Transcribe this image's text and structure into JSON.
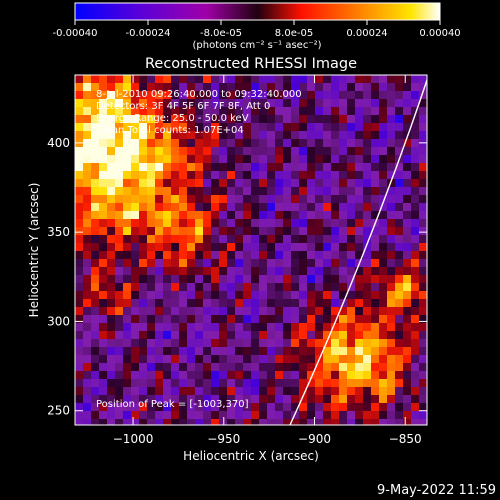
{
  "colorbar": {
    "ticks": [
      "-0.00040",
      "-0.00024",
      "-8.0e-05",
      "8.0e-05",
      "0.00024",
      "0.00040"
    ],
    "units": "(photons cm⁻² s⁻¹ asec⁻²)",
    "range": [
      -0.0004,
      0.0004
    ],
    "colors": [
      "#0000ff",
      "#6a00c8",
      "#b000a0",
      "#ff1a00",
      "#ff8c00",
      "#ffe000",
      "#ffffff"
    ]
  },
  "title": "Reconstructed RHESSI Image",
  "info": {
    "time_range": "8-Jul-2010 09:26:40.000 to 09:32:40.000",
    "detectors": "Detectors: 3F 4F 5F 6F 7F 8F, Att 0",
    "energy_range": "Energy Range: 25.0 - 50.0 keV",
    "clean": "Clean     Total counts: 1.07E+04",
    "peak": "Position of Peak = [-1003,370]"
  },
  "axes": {
    "xlabel": "Heliocentric X (arcsec)",
    "ylabel": "Heliocentric Y (arcsec)",
    "xlim": [
      -1032,
      -838
    ],
    "ylim": [
      242,
      438
    ],
    "xticks": [
      {
        "value": -1000,
        "label": "−1000"
      },
      {
        "value": -950,
        "label": "−950"
      },
      {
        "value": -900,
        "label": "−900"
      },
      {
        "value": -850,
        "label": "−850"
      }
    ],
    "yticks": [
      {
        "value": 250,
        "label": "250"
      },
      {
        "value": 300,
        "label": "300"
      },
      {
        "value": 350,
        "label": "350"
      },
      {
        "value": 400,
        "label": "400"
      }
    ]
  },
  "timestamp": "9-May-2022 11:59"
}
